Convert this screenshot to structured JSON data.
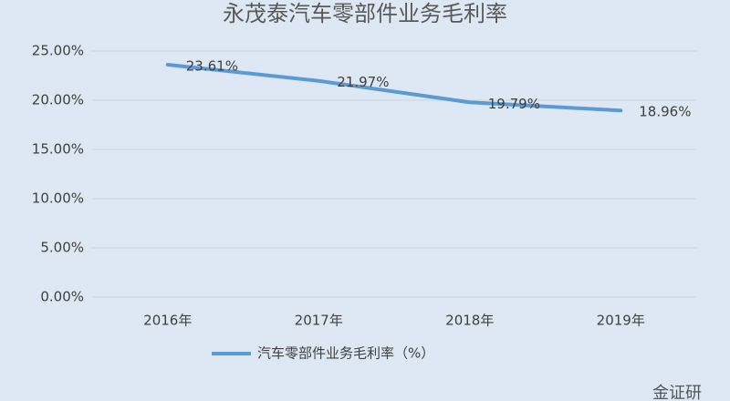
{
  "chart_data": {
    "type": "line",
    "title": "永茂泰汽车零部件业务毛利率",
    "categories": [
      "2016年",
      "2017年",
      "2018年",
      "2019年"
    ],
    "series": [
      {
        "name": "汽车零部件业务毛利率（%）",
        "color": "#5b9bd5",
        "values": [
          23.61,
          21.97,
          19.79,
          18.96
        ],
        "value_labels": [
          "23.61%",
          "21.97%",
          "19.79%",
          "18.96%"
        ]
      }
    ],
    "ylim": [
      0,
      25
    ],
    "yticks": [
      {
        "value": 0,
        "label": "0.00%"
      },
      {
        "value": 5,
        "label": "5.00%"
      },
      {
        "value": 10,
        "label": "10.00%"
      },
      {
        "value": 15,
        "label": "15.00%"
      },
      {
        "value": 20,
        "label": "20.00%"
      },
      {
        "value": 25,
        "label": "25.00%"
      }
    ],
    "grid": true,
    "legend": "bottom",
    "watermark": "金证研"
  }
}
